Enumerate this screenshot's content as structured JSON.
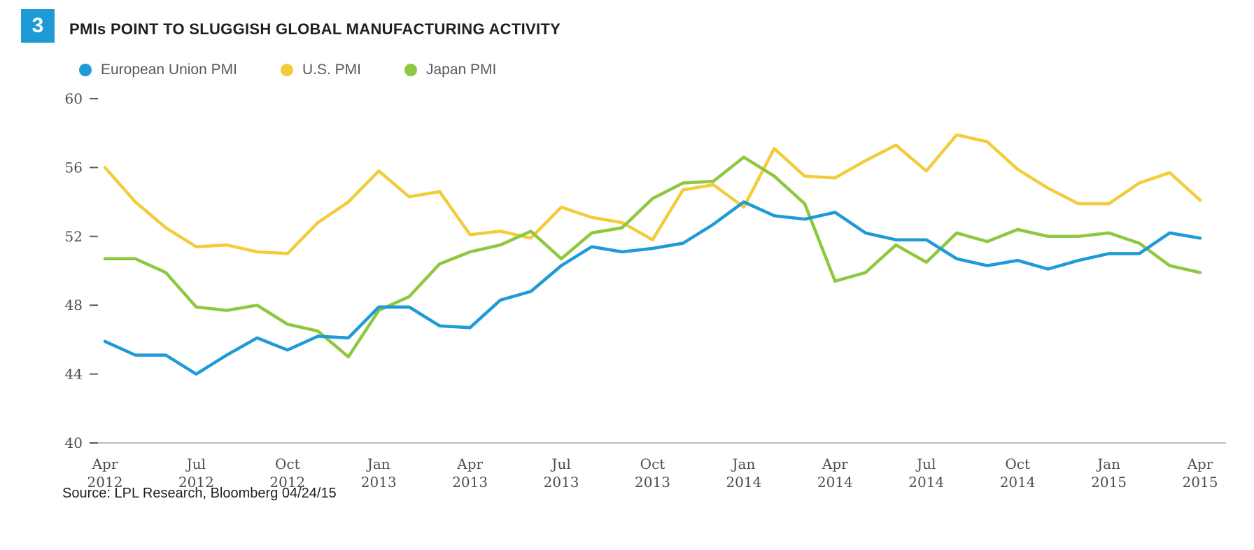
{
  "badge": {
    "number": "3",
    "color": "#1e9bd7"
  },
  "title": "PMIs POINT TO SLUGGISH GLOBAL MANUFACTURING ACTIVITY",
  "source": "Source: LPL Research, Bloomberg 04/24/15",
  "legend": [
    {
      "label": "European Union PMI",
      "color": "#1e9bd7"
    },
    {
      "label": "U.S. PMI",
      "color": "#f3cc3c"
    },
    {
      "label": "Japan PMI",
      "color": "#8fc73e"
    }
  ],
  "colors": {
    "axis_line": "#a7a9ac",
    "tick_text": "#4d4d4f",
    "tick_mark": "#58595b"
  },
  "chart_data": {
    "type": "line",
    "x": [
      "Apr 2012",
      "May 2012",
      "Jun 2012",
      "Jul 2012",
      "Aug 2012",
      "Sep 2012",
      "Oct 2012",
      "Nov 2012",
      "Dec 2012",
      "Jan 2013",
      "Feb 2013",
      "Mar 2013",
      "Apr 2013",
      "May 2013",
      "Jun 2013",
      "Jul 2013",
      "Aug 2013",
      "Sep 2013",
      "Oct 2013",
      "Nov 2013",
      "Dec 2013",
      "Jan 2014",
      "Feb 2014",
      "Mar 2014",
      "Apr 2014",
      "May 2014",
      "Jun 2014",
      "Jul 2014",
      "Aug 2014",
      "Sep 2014",
      "Oct 2014",
      "Nov 2014",
      "Dec 2014",
      "Jan 2015",
      "Feb 2015",
      "Mar 2015",
      "Apr 2015"
    ],
    "x_tick_indices": [
      0,
      3,
      6,
      9,
      12,
      15,
      18,
      21,
      24,
      27,
      30,
      33,
      36
    ],
    "ylim": [
      40,
      60
    ],
    "yticks": [
      40,
      44,
      48,
      52,
      56,
      60
    ],
    "grid": false,
    "legend_position": "top-left",
    "title": "PMIs POINT TO SLUGGISH GLOBAL MANUFACTURING ACTIVITY",
    "xlabel": "",
    "ylabel": "",
    "series": [
      {
        "name": "European Union PMI",
        "color": "#1e9bd7",
        "values": [
          45.9,
          45.1,
          45.1,
          44.0,
          45.1,
          46.1,
          45.4,
          46.2,
          46.1,
          47.9,
          47.9,
          46.8,
          46.7,
          48.3,
          48.8,
          50.3,
          51.4,
          51.1,
          51.3,
          51.6,
          52.7,
          54.0,
          53.2,
          53.0,
          53.4,
          52.2,
          51.8,
          51.8,
          50.7,
          50.3,
          50.6,
          50.1,
          50.6,
          51.0,
          51.0,
          52.2,
          51.9
        ]
      },
      {
        "name": "U.S. PMI",
        "color": "#f3cc3c",
        "values": [
          56.0,
          54.0,
          52.5,
          51.4,
          51.5,
          51.1,
          51.0,
          52.8,
          54.0,
          55.8,
          54.3,
          54.6,
          52.1,
          52.3,
          51.9,
          53.7,
          53.1,
          52.8,
          51.8,
          54.7,
          55.0,
          53.7,
          57.1,
          55.5,
          55.4,
          56.4,
          57.3,
          55.8,
          57.9,
          57.5,
          55.9,
          54.8,
          53.9,
          53.9,
          55.1,
          55.7,
          54.1
        ]
      },
      {
        "name": "Japan PMI",
        "color": "#8fc73e",
        "values": [
          50.7,
          50.7,
          49.9,
          47.9,
          47.7,
          48.0,
          46.9,
          46.5,
          45.0,
          47.7,
          48.5,
          50.4,
          51.1,
          51.5,
          52.3,
          50.7,
          52.2,
          52.5,
          54.2,
          55.1,
          55.2,
          56.6,
          55.5,
          53.9,
          49.4,
          49.9,
          51.5,
          50.5,
          52.2,
          51.7,
          52.4,
          52.0,
          52.0,
          52.2,
          51.6,
          50.3,
          49.9
        ]
      }
    ]
  }
}
